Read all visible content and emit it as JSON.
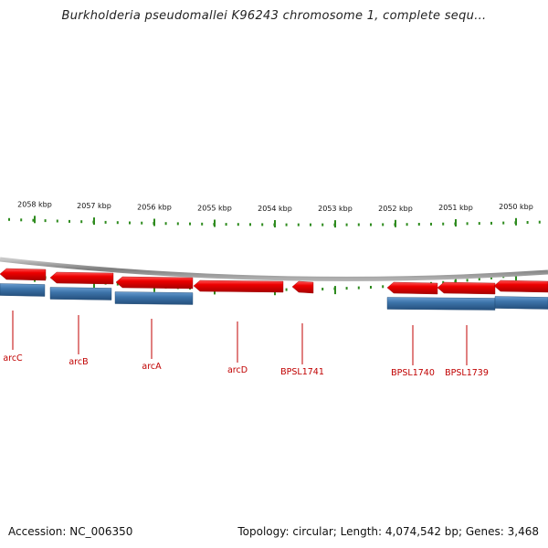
{
  "title": "Burkholderia pseudomallei K96243 chromosome 1, complete sequ...",
  "footer": {
    "accession": "Accession: NC_006350",
    "summary": "Topology: circular; Length: 4,074,542 bp; Genes: 3,468"
  },
  "colors": {
    "forward_gene": "#e60000",
    "reverse_gene": "#3d74aa",
    "ruler_tick": "#2e8b1e",
    "backbone": "#8a8a8a",
    "label": "#c00000"
  },
  "ruler": {
    "labels": [
      "2058 kbp",
      "2057 kbp",
      "2056 kbp",
      "2055 kbp",
      "2054 kbp",
      "2053 kbp",
      "2052 kbp",
      "2051 kbp",
      "2050 kbp"
    ]
  },
  "genes": [
    {
      "name": "arcC",
      "strand": "forward"
    },
    {
      "name": "arcB",
      "strand": "forward"
    },
    {
      "name": "arcA",
      "strand": "forward"
    },
    {
      "name": "arcD",
      "strand": "forward"
    },
    {
      "name": "BPSL1741",
      "strand": "forward"
    },
    {
      "name": "BPSL1740",
      "strand": "forward"
    },
    {
      "name": "BPSL1739",
      "strand": "forward"
    }
  ]
}
